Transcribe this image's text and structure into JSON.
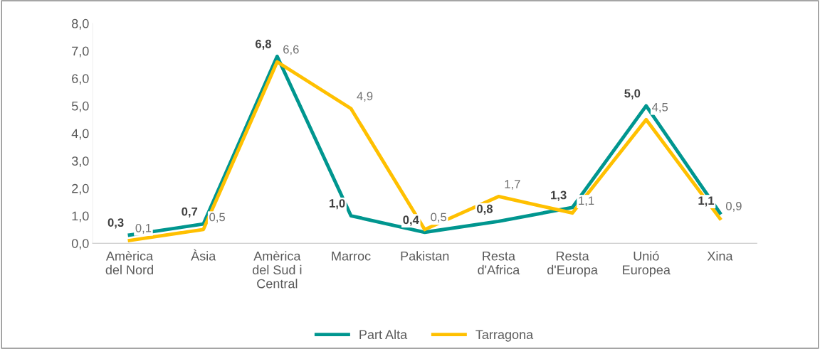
{
  "chart_data": {
    "type": "line",
    "categories": [
      "Amèrica del Nord",
      "Àsia",
      "Amèrica del Sud i Central",
      "Marroc",
      "Pakistan",
      "Resta d'Africa",
      "Resta d'Europa",
      "Unió Europea",
      "Xina"
    ],
    "series": [
      {
        "name": "Part Alta",
        "color": "#00968f",
        "values": [
          0.3,
          0.7,
          6.8,
          1.0,
          0.4,
          0.8,
          1.3,
          5.0,
          1.1
        ],
        "value_labels": [
          "0,3",
          "0,7",
          "6,8",
          "1,0",
          "0,4",
          "0,8",
          "1,3",
          "5,0",
          "1,1"
        ]
      },
      {
        "name": "Tarragona",
        "color": "#ffc000",
        "values": [
          0.1,
          0.5,
          6.6,
          4.9,
          0.5,
          1.7,
          1.1,
          4.5,
          0.9
        ],
        "value_labels": [
          "0,1",
          "0,5",
          "6,6",
          "4,9",
          "0,5",
          "1,7",
          "1,1",
          "4,5",
          "0,9"
        ]
      }
    ],
    "ylim": [
      0,
      8
    ],
    "yticks": [
      {
        "value": 0,
        "label": "0,0"
      },
      {
        "value": 1,
        "label": "1,0"
      },
      {
        "value": 2,
        "label": "2,0"
      },
      {
        "value": 3,
        "label": "3,0"
      },
      {
        "value": 4,
        "label": "4,0"
      },
      {
        "value": 5,
        "label": "5,0"
      },
      {
        "value": 6,
        "label": "6,0"
      },
      {
        "value": 7,
        "label": "7,0"
      },
      {
        "value": 8,
        "label": "8,0"
      }
    ],
    "grid": false,
    "legend": "bottom",
    "marker": "none",
    "line_style": "solid"
  }
}
